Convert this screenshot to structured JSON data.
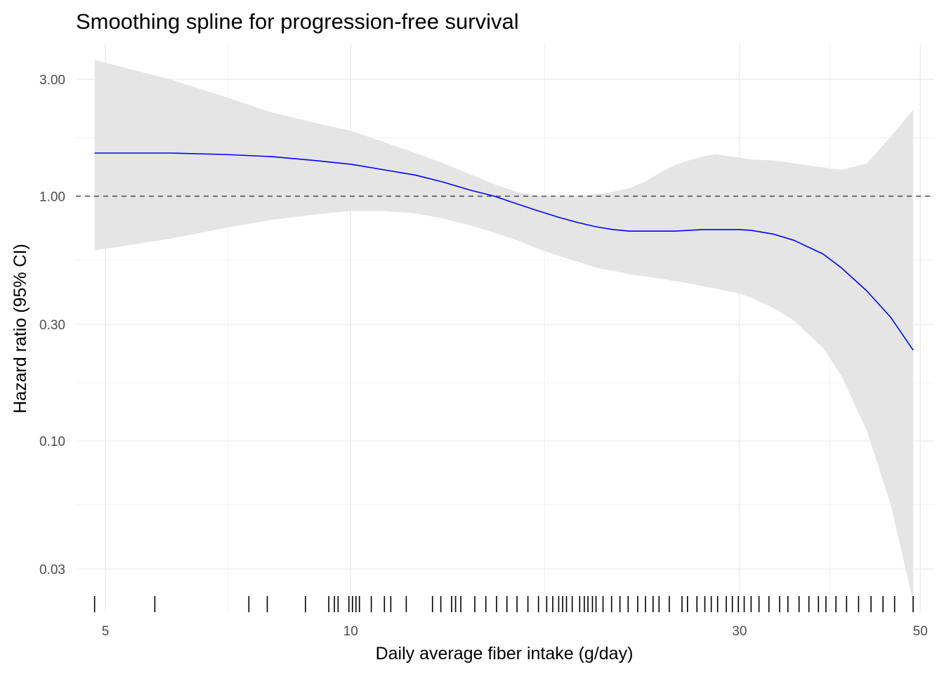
{
  "chart_data": {
    "type": "line",
    "title": "Smoothing spline for progression-free survival",
    "xlabel": "Daily average fiber intake (g/day)",
    "ylabel": "Hazard ratio (95% CI)",
    "x_scale": "log",
    "y_scale": "log",
    "xlim": [
      4.6,
      52
    ],
    "ylim": [
      0.02,
      4.2
    ],
    "x_ticks": [
      5,
      10,
      30,
      50
    ],
    "x_tick_labels": [
      "5",
      "10",
      "30",
      "50"
    ],
    "x_minor_ticks": [
      7.07,
      17.3,
      38.7
    ],
    "y_ticks": [
      0.03,
      0.1,
      0.3,
      1.0,
      3.0
    ],
    "y_tick_labels": [
      "0.03",
      "0.10",
      "0.30",
      "1.00",
      "3.00"
    ],
    "y_minor_ticks": [
      0.055,
      0.173,
      0.548,
      1.732
    ],
    "reference_line": {
      "y": 1.0,
      "style": "dashed"
    },
    "colors": {
      "line": "#0000ff",
      "band": "#e5e5e5",
      "reference": "#555555",
      "rug": "#000000"
    },
    "series": [
      {
        "name": "Hazard ratio",
        "x": [
          4.85,
          6,
          7,
          8,
          9,
          10,
          11,
          12,
          13,
          14,
          15,
          16,
          17,
          18,
          19,
          20,
          21,
          22,
          23,
          24,
          25,
          26,
          27,
          28,
          29,
          30,
          31,
          33,
          35,
          38,
          40,
          43,
          46,
          49
        ],
        "y": [
          1.5,
          1.5,
          1.48,
          1.45,
          1.4,
          1.35,
          1.28,
          1.22,
          1.14,
          1.06,
          1.0,
          0.93,
          0.87,
          0.82,
          0.78,
          0.75,
          0.73,
          0.72,
          0.72,
          0.72,
          0.72,
          0.725,
          0.73,
          0.73,
          0.73,
          0.73,
          0.725,
          0.7,
          0.66,
          0.58,
          0.51,
          0.41,
          0.32,
          0.235
        ],
        "lower": [
          0.6,
          0.67,
          0.74,
          0.8,
          0.84,
          0.87,
          0.87,
          0.85,
          0.81,
          0.76,
          0.71,
          0.66,
          0.61,
          0.57,
          0.54,
          0.51,
          0.495,
          0.48,
          0.47,
          0.46,
          0.45,
          0.44,
          0.43,
          0.42,
          0.41,
          0.4,
          0.385,
          0.35,
          0.31,
          0.24,
          0.185,
          0.11,
          0.055,
          0.022
        ],
        "upper": [
          3.6,
          3.0,
          2.55,
          2.2,
          2.0,
          1.85,
          1.66,
          1.5,
          1.36,
          1.23,
          1.12,
          1.04,
          1.0,
          0.99,
          1.0,
          1.02,
          1.04,
          1.08,
          1.15,
          1.25,
          1.34,
          1.4,
          1.45,
          1.48,
          1.46,
          1.44,
          1.41,
          1.4,
          1.36,
          1.31,
          1.28,
          1.36,
          1.75,
          2.25
        ]
      }
    ],
    "rug": [
      4.85,
      5.75,
      7.5,
      7.9,
      8.8,
      9.4,
      9.55,
      9.65,
      9.95,
      10.05,
      10.15,
      10.25,
      10.6,
      11.0,
      11.2,
      11.7,
      12.6,
      12.9,
      13.3,
      13.45,
      13.65,
      14.2,
      14.65,
      15.1,
      15.55,
      16.0,
      16.5,
      17.0,
      17.4,
      17.7,
      18.0,
      18.2,
      18.4,
      18.7,
      19.1,
      19.35,
      19.55,
      19.8,
      20.0,
      20.4,
      20.9,
      21.4,
      21.9,
      22.5,
      23.0,
      23.5,
      23.9,
      24.6,
      25.5,
      25.9,
      26.6,
      27.2,
      27.7,
      28.2,
      28.9,
      29.4,
      29.9,
      30.4,
      31.0,
      31.7,
      32.6,
      33.6,
      34.4,
      35.5,
      36.5,
      37.5,
      38.3,
      39.4,
      40.6,
      42.0,
      43.5,
      45.0,
      46.5,
      49.0
    ]
  }
}
